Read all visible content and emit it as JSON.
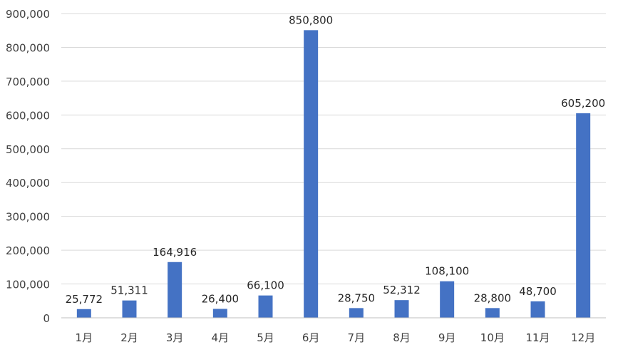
{
  "chart_data": {
    "type": "bar",
    "categories": [
      "1月",
      "2月",
      "3月",
      "4月",
      "5月",
      "6月",
      "7月",
      "8月",
      "9月",
      "10月",
      "11月",
      "12月"
    ],
    "values": [
      25772,
      51311,
      164916,
      26400,
      66100,
      850800,
      28750,
      52312,
      108100,
      28800,
      48700,
      605200
    ],
    "data_labels": [
      "25,772",
      "51,311",
      "164,916",
      "26,400",
      "66,100",
      "850,800",
      "28,750",
      "52,312",
      "108,100",
      "28,800",
      "48,700",
      "605,200"
    ],
    "y_ticks": [
      0,
      100000,
      200000,
      300000,
      400000,
      500000,
      600000,
      700000,
      800000,
      900000
    ],
    "y_tick_labels": [
      "0",
      "100,000",
      "200,000",
      "300,000",
      "400,000",
      "500,000",
      "600,000",
      "700,000",
      "800,000",
      "900,000"
    ],
    "ylim": [
      0,
      900000
    ],
    "grid": true,
    "legend": "none",
    "title": "",
    "xlabel": "",
    "ylabel": "",
    "colors": {
      "bar": "#4472C4",
      "grid": "#D9D9D9",
      "axis": "#BFBFBF",
      "text": "#404040",
      "label": "#262626"
    }
  }
}
